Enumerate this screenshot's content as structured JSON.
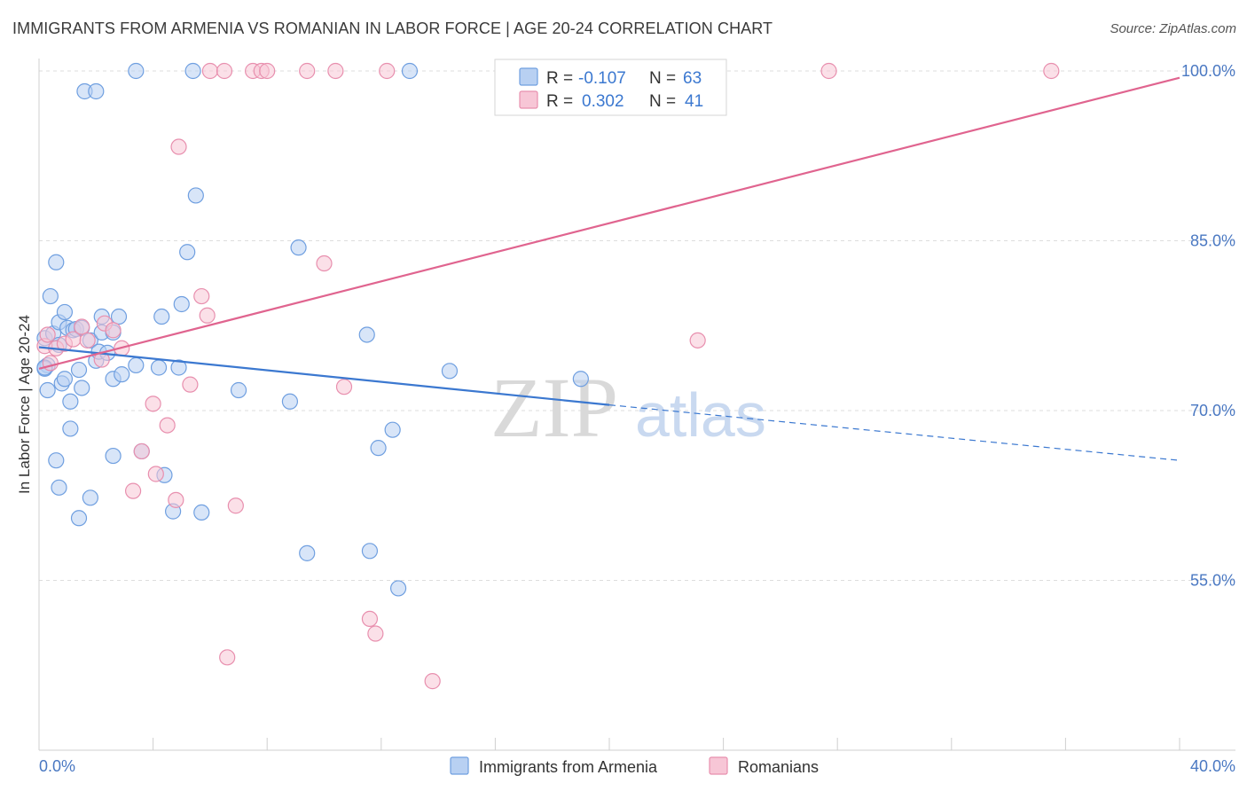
{
  "header": {
    "title": "IMMIGRANTS FROM ARMENIA VS ROMANIAN IN LABOR FORCE | AGE 20-24 CORRELATION CHART",
    "source": "Source: ZipAtlas.com"
  },
  "watermark": {
    "zip": "ZIP",
    "atlas": "atlas"
  },
  "colors": {
    "blue_fill": "#b8d0f2",
    "blue_stroke": "#6f9fe0",
    "blue_line": "#3b78d0",
    "pink_fill": "#f7c6d6",
    "pink_stroke": "#e88fae",
    "pink_line": "#e0648f",
    "tick_text": "#4a78c2",
    "grid": "#dddddd"
  },
  "legend": {
    "rows": [
      {
        "r_label": "R =",
        "r_value": "-0.107",
        "n_label": "N =",
        "n_value": "63"
      },
      {
        "r_label": "R =",
        "r_value": "0.302",
        "n_label": "N =",
        "n_value": "41"
      }
    ]
  },
  "bottom_legend": [
    "Immigrants from Armenia",
    "Romanians"
  ],
  "chart_data": {
    "type": "scatter",
    "title": "IMMIGRANTS FROM ARMENIA VS ROMANIAN IN LABOR FORCE | AGE 20-24 CORRELATION CHART",
    "ylabel": "In Labor Force | Age 20-24",
    "xlabel": "",
    "xlim": [
      0,
      40
    ],
    "ylim": [
      40,
      100
    ],
    "x_tick_labels": [
      "0.0%",
      "40.0%"
    ],
    "y_ticks": [
      55,
      70,
      85,
      100
    ],
    "y_tick_labels": [
      "55.0%",
      "70.0%",
      "85.0%",
      "100.0%"
    ],
    "grid": true,
    "series": [
      {
        "name": "Immigrants from Armenia",
        "color": "#b8d0f2",
        "points": [
          [
            0.2,
            76.4
          ],
          [
            0.3,
            74.0
          ],
          [
            0.2,
            73.7
          ],
          [
            0.3,
            71.8
          ],
          [
            0.4,
            80.1
          ],
          [
            0.5,
            76.8
          ],
          [
            0.6,
            83.1
          ],
          [
            0.7,
            75.8
          ],
          [
            0.7,
            77.8
          ],
          [
            0.8,
            72.4
          ],
          [
            0.9,
            78.7
          ],
          [
            0.9,
            72.8
          ],
          [
            1.0,
            77.3
          ],
          [
            1.1,
            70.8
          ],
          [
            1.1,
            68.4
          ],
          [
            1.2,
            77.1
          ],
          [
            1.3,
            77.2
          ],
          [
            1.4,
            73.6
          ],
          [
            1.5,
            72.0
          ],
          [
            1.5,
            77.3
          ],
          [
            1.6,
            98.2
          ],
          [
            1.8,
            76.2
          ],
          [
            1.8,
            62.3
          ],
          [
            2.0,
            98.2
          ],
          [
            2.0,
            74.4
          ],
          [
            2.1,
            75.2
          ],
          [
            2.2,
            76.9
          ],
          [
            2.2,
            78.3
          ],
          [
            2.4,
            75.1
          ],
          [
            2.6,
            76.9
          ],
          [
            2.6,
            72.8
          ],
          [
            2.8,
            78.3
          ],
          [
            2.9,
            73.2
          ],
          [
            3.4,
            74.0
          ],
          [
            3.4,
            100.0
          ],
          [
            3.6,
            66.4
          ],
          [
            4.2,
            73.8
          ],
          [
            4.3,
            78.3
          ],
          [
            4.4,
            64.3
          ],
          [
            4.7,
            61.1
          ],
          [
            4.9,
            73.8
          ],
          [
            5.0,
            79.4
          ],
          [
            5.2,
            84.0
          ],
          [
            5.4,
            100.0
          ],
          [
            5.5,
            89.0
          ],
          [
            5.7,
            61.0
          ],
          [
            7.0,
            71.8
          ],
          [
            8.8,
            70.8
          ],
          [
            9.1,
            84.4
          ],
          [
            9.4,
            57.4
          ],
          [
            11.5,
            76.7
          ],
          [
            11.6,
            57.6
          ],
          [
            11.9,
            66.7
          ],
          [
            12.4,
            68.3
          ],
          [
            12.6,
            54.3
          ],
          [
            13.0,
            100.0
          ],
          [
            14.4,
            73.5
          ],
          [
            19.0,
            72.8
          ],
          [
            0.6,
            65.6
          ],
          [
            0.7,
            63.2
          ],
          [
            1.4,
            60.5
          ],
          [
            2.6,
            66.0
          ],
          [
            0.2,
            73.8
          ]
        ]
      },
      {
        "name": "Romanians",
        "color": "#f7c6d6",
        "points": [
          [
            0.2,
            75.7
          ],
          [
            0.3,
            76.7
          ],
          [
            0.4,
            74.2
          ],
          [
            0.6,
            75.5
          ],
          [
            0.9,
            75.9
          ],
          [
            1.2,
            76.3
          ],
          [
            1.5,
            77.4
          ],
          [
            1.7,
            76.2
          ],
          [
            2.2,
            74.5
          ],
          [
            2.3,
            77.7
          ],
          [
            2.6,
            77.1
          ],
          [
            2.9,
            75.5
          ],
          [
            3.3,
            62.9
          ],
          [
            3.6,
            66.4
          ],
          [
            4.0,
            70.6
          ],
          [
            4.1,
            64.4
          ],
          [
            4.5,
            68.7
          ],
          [
            4.8,
            62.1
          ],
          [
            4.9,
            93.3
          ],
          [
            5.3,
            72.3
          ],
          [
            5.7,
            80.1
          ],
          [
            5.9,
            78.4
          ],
          [
            6.0,
            100.0
          ],
          [
            6.5,
            100.0
          ],
          [
            6.6,
            48.2
          ],
          [
            6.9,
            61.6
          ],
          [
            7.5,
            100.0
          ],
          [
            7.8,
            100.0
          ],
          [
            8.0,
            100.0
          ],
          [
            9.4,
            100.0
          ],
          [
            10.0,
            83.0
          ],
          [
            10.4,
            100.0
          ],
          [
            10.7,
            72.1
          ],
          [
            11.6,
            51.6
          ],
          [
            11.8,
            50.3
          ],
          [
            12.2,
            100.0
          ],
          [
            13.8,
            46.1
          ],
          [
            22.5,
            100.0
          ],
          [
            23.1,
            76.2
          ],
          [
            27.7,
            100.0
          ],
          [
            35.5,
            100.0
          ]
        ]
      }
    ],
    "trendlines": [
      {
        "series": "Immigrants from Armenia",
        "solid": [
          [
            0,
            75.6
          ],
          [
            20,
            70.5
          ]
        ],
        "dashed": [
          [
            20,
            70.5
          ],
          [
            40,
            65.6
          ]
        ]
      },
      {
        "series": "Romanians",
        "solid": [
          [
            0,
            73.7
          ],
          [
            40,
            99.4
          ]
        ]
      }
    ]
  }
}
